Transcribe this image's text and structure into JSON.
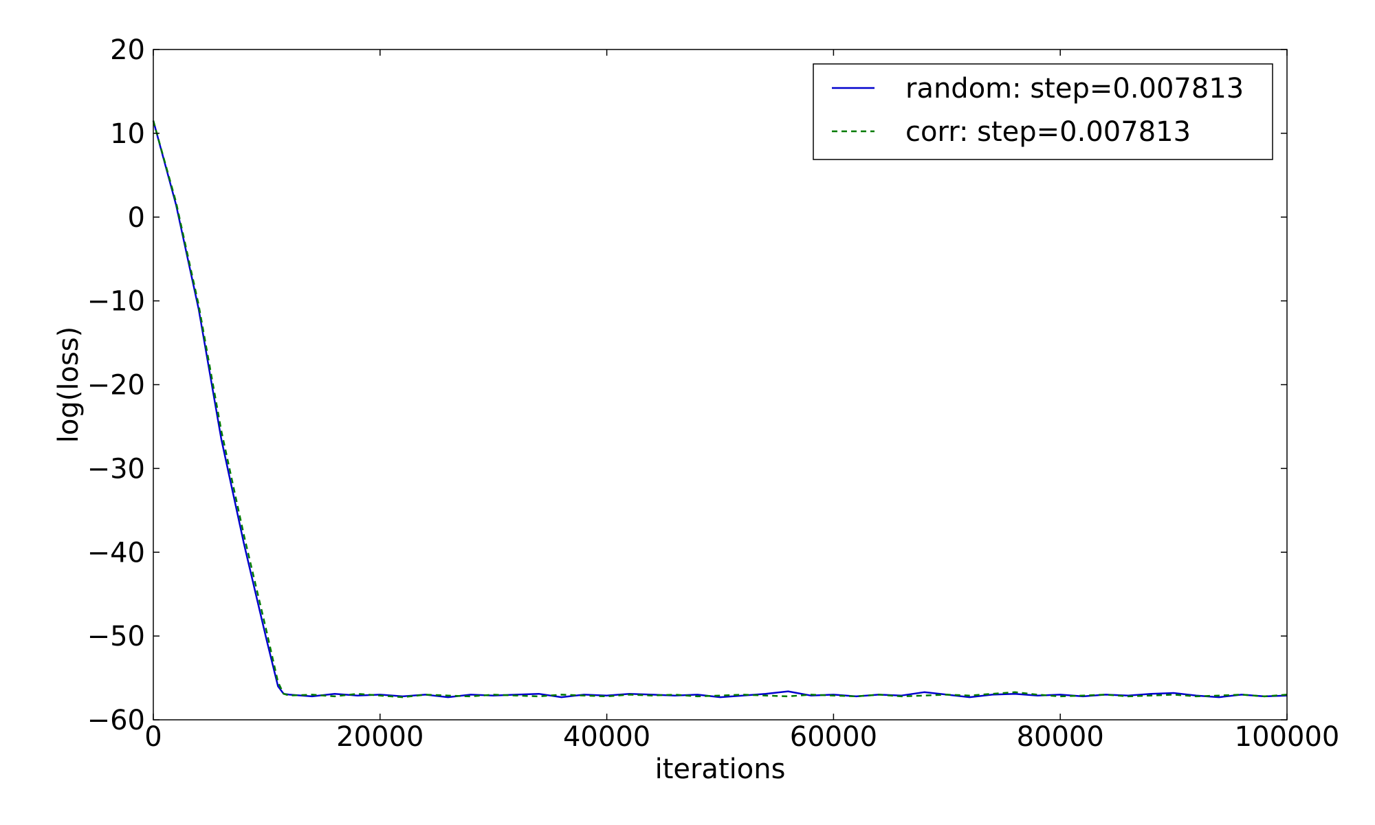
{
  "chart_data": {
    "type": "line",
    "xlabel": "iterations",
    "ylabel": "log(loss)",
    "xlim": [
      0,
      100000
    ],
    "ylim": [
      -60,
      20
    ],
    "xticks": [
      0,
      20000,
      40000,
      60000,
      80000,
      100000
    ],
    "yticks": [
      -60,
      -50,
      -40,
      -30,
      -20,
      -10,
      0,
      10,
      20
    ],
    "xtick_labels": [
      "0",
      "20000",
      "40000",
      "60000",
      "80000",
      "100000"
    ],
    "ytick_labels": [
      "−60",
      "−50",
      "−40",
      "−30",
      "−20",
      "−10",
      "0",
      "10",
      "20"
    ],
    "grid": false,
    "legend_position": "top-right",
    "series": [
      {
        "name": "random: step=0.007813",
        "color": "#0000cc",
        "style": "solid",
        "x": [
          0,
          2000,
          4000,
          6000,
          8000,
          10000,
          11000,
          11500,
          12000,
          14000,
          16000,
          18000,
          20000,
          22000,
          24000,
          26000,
          28000,
          30000,
          32000,
          34000,
          36000,
          38000,
          40000,
          42000,
          44000,
          46000,
          48000,
          50000,
          52000,
          54000,
          56000,
          58000,
          60000,
          62000,
          64000,
          66000,
          68000,
          70000,
          72000,
          74000,
          76000,
          78000,
          80000,
          82000,
          84000,
          86000,
          88000,
          90000,
          92000,
          94000,
          96000,
          98000,
          100000
        ],
        "y": [
          11.5,
          1.5,
          -11.0,
          -26.5,
          -39.0,
          -50.5,
          -56.0,
          -56.9,
          -57.0,
          -57.2,
          -56.9,
          -57.1,
          -57.0,
          -57.2,
          -57.0,
          -57.3,
          -57.0,
          -57.1,
          -57.0,
          -56.9,
          -57.3,
          -57.0,
          -57.1,
          -56.9,
          -57.0,
          -57.1,
          -57.0,
          -57.3,
          -57.1,
          -56.9,
          -56.6,
          -57.1,
          -57.0,
          -57.2,
          -57.0,
          -57.1,
          -56.7,
          -57.0,
          -57.3,
          -57.0,
          -56.9,
          -57.1,
          -57.0,
          -57.2,
          -57.0,
          -57.1,
          -56.9,
          -56.8,
          -57.1,
          -57.3,
          -57.0,
          -57.2,
          -57.1
        ]
      },
      {
        "name": "corr: step=0.007813",
        "color": "#007a00",
        "style": "dashed",
        "x": [
          0,
          2000,
          4000,
          6000,
          8000,
          10000,
          11000,
          11500,
          12000,
          14000,
          16000,
          18000,
          20000,
          22000,
          24000,
          26000,
          28000,
          30000,
          32000,
          34000,
          36000,
          38000,
          40000,
          42000,
          44000,
          46000,
          48000,
          50000,
          52000,
          54000,
          56000,
          58000,
          60000,
          62000,
          64000,
          66000,
          68000,
          70000,
          72000,
          74000,
          76000,
          78000,
          80000,
          82000,
          84000,
          86000,
          88000,
          90000,
          92000,
          94000,
          96000,
          98000,
          100000
        ],
        "y": [
          11.5,
          1.8,
          -10.5,
          -25.5,
          -38.0,
          -49.5,
          -55.5,
          -56.9,
          -57.1,
          -57.0,
          -57.2,
          -56.9,
          -57.1,
          -57.3,
          -57.0,
          -57.1,
          -57.2,
          -57.0,
          -57.1,
          -57.2,
          -57.0,
          -57.1,
          -57.2,
          -57.0,
          -57.1,
          -57.0,
          -57.2,
          -57.1,
          -57.0,
          -57.1,
          -57.2,
          -57.0,
          -57.1,
          -57.2,
          -57.0,
          -57.2,
          -57.1,
          -57.0,
          -57.1,
          -56.9,
          -56.7,
          -57.0,
          -57.2,
          -57.1,
          -57.0,
          -57.2,
          -57.1,
          -57.0,
          -57.2,
          -57.1,
          -57.0,
          -57.2,
          -57.0
        ]
      }
    ]
  }
}
